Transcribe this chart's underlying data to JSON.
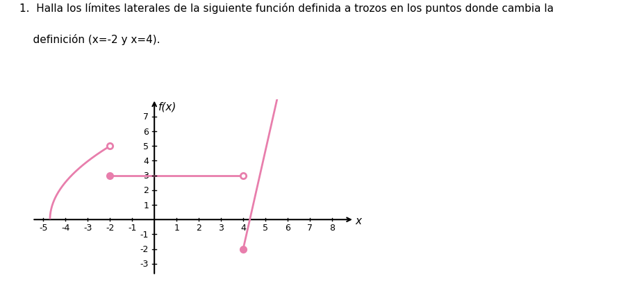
{
  "title_line1": "1.  Halla los límites laterales de la siguiente función definida a trozos en los puntos donde cambia la",
  "title_line2": "    definición (x=-2 y x=4).",
  "ylabel": "f(x)",
  "xlabel": "x",
  "xlim": [
    -5.5,
    9.0
  ],
  "ylim": [
    -3.8,
    8.2
  ],
  "xticks": [
    -5,
    -4,
    -3,
    -2,
    -1,
    1,
    2,
    3,
    4,
    5,
    6,
    7,
    8
  ],
  "yticks": [
    -3,
    -2,
    -1,
    1,
    2,
    3,
    4,
    5,
    6,
    7
  ],
  "color": "#e87eac",
  "bg_color": "#ffffff",
  "grid_color": "#cccccc",
  "curve_root": -4.7,
  "curve_end_x": -2,
  "curve_end_y": 5,
  "segment2_y": 3,
  "segment2_x_start": -2,
  "segment2_x_end": 4,
  "segment3_x_start": 4,
  "segment3_y_start": -2,
  "segment3_slope": 6.67,
  "segment3_x_end": 5.55,
  "open_circle_1": [
    -2,
    5
  ],
  "filled_circle_1": [
    -2,
    3
  ],
  "open_circle_2": [
    4,
    3
  ],
  "filled_circle_2": [
    4,
    -2
  ],
  "line_width": 2.0,
  "markersize": 6,
  "title_fontsize": 11,
  "tick_fontsize": 9,
  "axis_label_fontsize": 11
}
